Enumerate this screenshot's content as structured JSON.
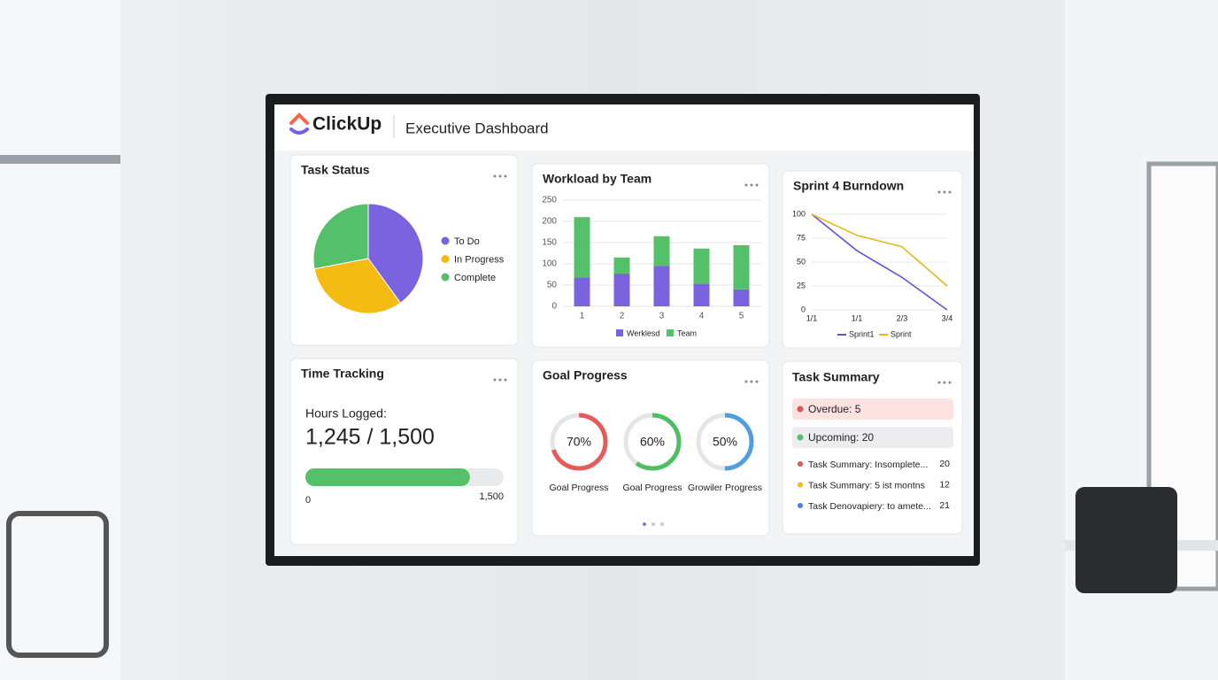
{
  "header": {
    "logo": "ClickUp",
    "title": "Executive Dashboard"
  },
  "chart_data": [
    {
      "type": "pie",
      "title": "Task Status",
      "categories": [
        "To Do",
        "In Progress",
        "Complete"
      ],
      "values": [
        40,
        32,
        28
      ],
      "colors": [
        "#7b63e0",
        "#f4bb12",
        "#55c06a"
      ]
    },
    {
      "type": "bar",
      "title": "Workload by Team",
      "categories": [
        "1",
        "2",
        "3",
        "4",
        "5"
      ],
      "series": [
        {
          "name": "Werklesd",
          "color": "#7b63e0",
          "values": [
            68,
            77,
            95,
            53,
            40
          ]
        },
        {
          "name": "Team",
          "color": "#55c06a",
          "values": [
            142,
            38,
            70,
            83,
            104
          ]
        }
      ],
      "stacked": true,
      "ylim": [
        0,
        250
      ],
      "yticks": [
        0,
        50,
        100,
        150,
        200,
        250
      ],
      "grid": true
    },
    {
      "type": "line",
      "title": "Sprint 4 Burndown",
      "categories": [
        "1/1",
        "1/1",
        "2/3",
        "3/4"
      ],
      "series": [
        {
          "name": "Sprint1",
          "color": "#6a4fd6",
          "values": [
            100,
            62,
            34,
            0
          ]
        },
        {
          "name": "Sprint",
          "color": "#e3b91c",
          "values": [
            100,
            78,
            66,
            25
          ]
        }
      ],
      "ylim": [
        0,
        100
      ],
      "yticks": [
        0,
        25,
        50,
        75,
        100
      ],
      "grid": true
    },
    {
      "type": "progress",
      "title": "Time Tracking",
      "label": "Hours Logged:",
      "summary": "1,245 / 1,500",
      "value": 1245,
      "color": "#55c06a",
      "xlim": [
        0,
        1500
      ],
      "xticks": [
        0,
        {
          "value": 1500,
          "label": "1,500"
        }
      ]
    },
    {
      "type": "gauge",
      "title": "Goal Progress",
      "categories": [
        "Goal Progress",
        "Goal Progress",
        "Growiler Progress"
      ],
      "values": [
        70,
        60,
        50
      ],
      "value_labels": [
        "70%",
        "60%",
        "50%"
      ],
      "colors": [
        "#e85a5a",
        "#4cbf62",
        "#4f9fe0"
      ],
      "ylim": [
        0,
        100
      ]
    }
  ],
  "task_summary": {
    "title": "Task Summary",
    "pills": [
      {
        "label": "Overdue: 5",
        "color": "#e05353"
      },
      {
        "label": "Upcoming: 20",
        "color": "#55c06a"
      }
    ],
    "rows": [
      {
        "label": "Task Summary: Insomplete...",
        "value": "20",
        "color": "#e05353"
      },
      {
        "label": "Task Summary: 5 ist montns",
        "value": "12",
        "color": "#f4bb12"
      },
      {
        "label": "Task Denovapiery: to amete...",
        "value": "21",
        "color": "#4f7fe0"
      }
    ]
  }
}
